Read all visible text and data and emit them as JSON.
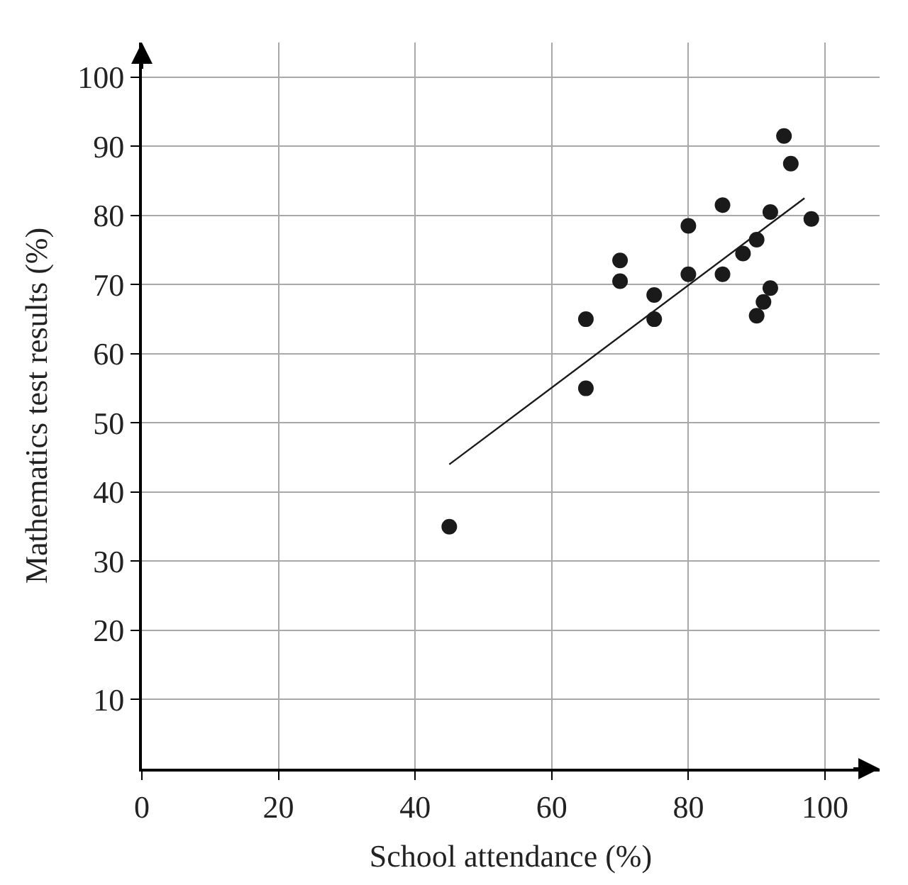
{
  "chart_data": {
    "type": "scatter",
    "xlabel": "School attendance (%)",
    "ylabel": "Mathematics test results (%)",
    "series": [
      {
        "color": "#1a1a1a",
        "marker": "circle",
        "x": [
          45,
          65,
          65,
          70,
          70,
          75,
          75,
          80,
          80,
          85,
          85,
          88,
          90,
          90,
          91,
          92,
          92,
          94,
          95,
          98
        ],
        "values": [
          35,
          65,
          55,
          73.5,
          70.5,
          68.5,
          65,
          78.5,
          71.5,
          81.5,
          71.5,
          74.5,
          76.5,
          65.5,
          67.5,
          69.5,
          80.5,
          91.5,
          87.5,
          79.5
        ]
      },
      {
        "type": "line",
        "color": "#1a1a1a",
        "line_style": "solid",
        "x": [
          45,
          97
        ],
        "values": [
          44,
          82.5
        ]
      }
    ],
    "xlim": [
      0,
      108
    ],
    "ylim": [
      0,
      105
    ],
    "xticks": [
      0,
      20,
      40,
      60,
      80,
      100
    ],
    "yticks": [
      10,
      20,
      30,
      40,
      50,
      60,
      70,
      80,
      90,
      100
    ],
    "grid": true
  }
}
